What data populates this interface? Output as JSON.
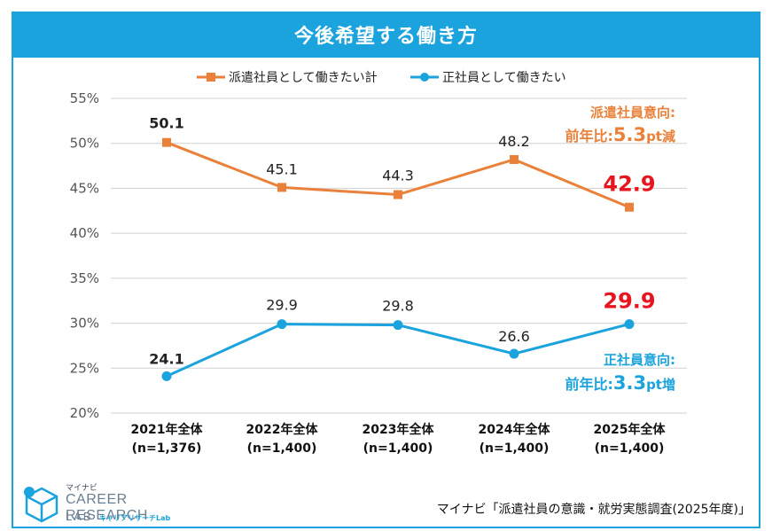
{
  "title": "今後希望する働き方",
  "colors": {
    "haken": "#e9813a",
    "seishain": "#1aa3dd",
    "highlight": "#e8141e",
    "grid": "#d0d0d0"
  },
  "chart_data": {
    "type": "line",
    "categories": [
      "2021年全体",
      "2022年全体",
      "2023年全体",
      "2024年全体",
      "2025年全体"
    ],
    "category_sub": [
      "(n=1,376)",
      "(n=1,400)",
      "(n=1,400)",
      "(n=1,400)",
      "(n=1,400)"
    ],
    "y_ticks": [
      "20%",
      "25%",
      "30%",
      "35%",
      "40%",
      "45%",
      "50%",
      "55%"
    ],
    "ylim": [
      20,
      55
    ],
    "grid": true,
    "legend_position": "top-center",
    "series": [
      {
        "name": "派遣社員として働きたい計",
        "values": [
          50.1,
          45.1,
          44.3,
          48.2,
          42.9
        ],
        "labels": [
          "50.1",
          "45.1",
          "44.3",
          "48.2",
          "42.9"
        ],
        "marker": "square"
      },
      {
        "name": "正社員として働きたい",
        "values": [
          24.1,
          29.9,
          29.8,
          26.6,
          29.9
        ],
        "labels": [
          "24.1",
          "29.9",
          "29.8",
          "26.6",
          "29.9"
        ],
        "marker": "circle"
      }
    ],
    "annotations": {
      "haken_line1": "派遣社員意向:",
      "haken_line2_prefix": "前年比:",
      "haken_value": "5.3",
      "haken_suffix_pt": "pt",
      "haken_suffix_word": "減",
      "seishain_line1": "正社員意向:",
      "seishain_line2_prefix": "前年比:",
      "seishain_value": "3.3",
      "seishain_suffix_pt": "pt",
      "seishain_suffix_word": "増"
    }
  },
  "logo": {
    "small": "マイナビ",
    "big": "CAREER RESEARCH",
    "lab": "LAB",
    "jp": "キャリアリサーチLab"
  },
  "source": "マイナビ「派遣社員の意識・就労実態調査(2025年度)」"
}
